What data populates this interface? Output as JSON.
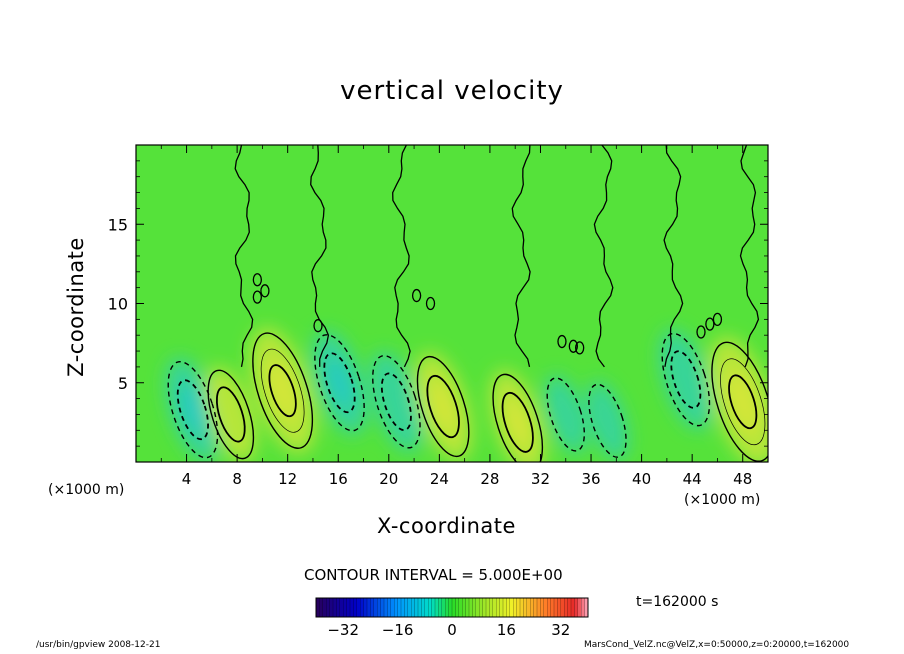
{
  "chart_data": {
    "type": "heatmap",
    "title": "vertical velocity",
    "xlabel": "X-coordinate",
    "ylabel": "Z-coordinate",
    "x_unit": "(×1000 m)",
    "xlim": [
      0,
      50
    ],
    "ylim": [
      0,
      20
    ],
    "x_ticks": [
      "4",
      "8",
      "12",
      "16",
      "20",
      "24",
      "28",
      "32",
      "36",
      "40",
      "44",
      "48"
    ],
    "y_ticks": [
      "5",
      "10",
      "15"
    ],
    "contour_interval_text": "CONTOUR INTERVAL = 5.000E+00",
    "time_label": "t=162000 s",
    "colorbar": {
      "range": [
        -40,
        40
      ],
      "ticks": [
        "−32",
        "−16",
        "0",
        "16",
        "32"
      ]
    },
    "features": [
      {
        "x": 4.5,
        "z": 3.3,
        "sign": "negative",
        "peak": -12
      },
      {
        "x": 7.5,
        "z": 3.0,
        "sign": "positive",
        "peak": 10
      },
      {
        "x": 11.6,
        "z": 4.5,
        "sign": "positive",
        "peak": 17
      },
      {
        "x": 16.1,
        "z": 5.0,
        "sign": "negative",
        "peak": -12
      },
      {
        "x": 20.6,
        "z": 3.8,
        "sign": "negative",
        "peak": -11
      },
      {
        "x": 24.3,
        "z": 3.5,
        "sign": "positive",
        "peak": 13
      },
      {
        "x": 30.2,
        "z": 2.5,
        "sign": "positive",
        "peak": 12
      },
      {
        "x": 34.0,
        "z": 3.0,
        "sign": "negative",
        "peak": -6
      },
      {
        "x": 37.3,
        "z": 2.6,
        "sign": "negative",
        "peak": -6
      },
      {
        "x": 43.5,
        "z": 5.2,
        "sign": "negative",
        "peak": -11
      },
      {
        "x": 48.0,
        "z": 3.8,
        "sign": "positive",
        "peak": 18
      }
    ]
  },
  "footer": {
    "left": "/usr/bin/gpview   2008-12-21",
    "right": "MarsCond_VelZ.nc@VelZ,x=0:50000,z=0:20000,t=162000"
  },
  "colors": {
    "background": "#55e23a",
    "positive": "#c8e838",
    "negative": "#34d2a8"
  }
}
